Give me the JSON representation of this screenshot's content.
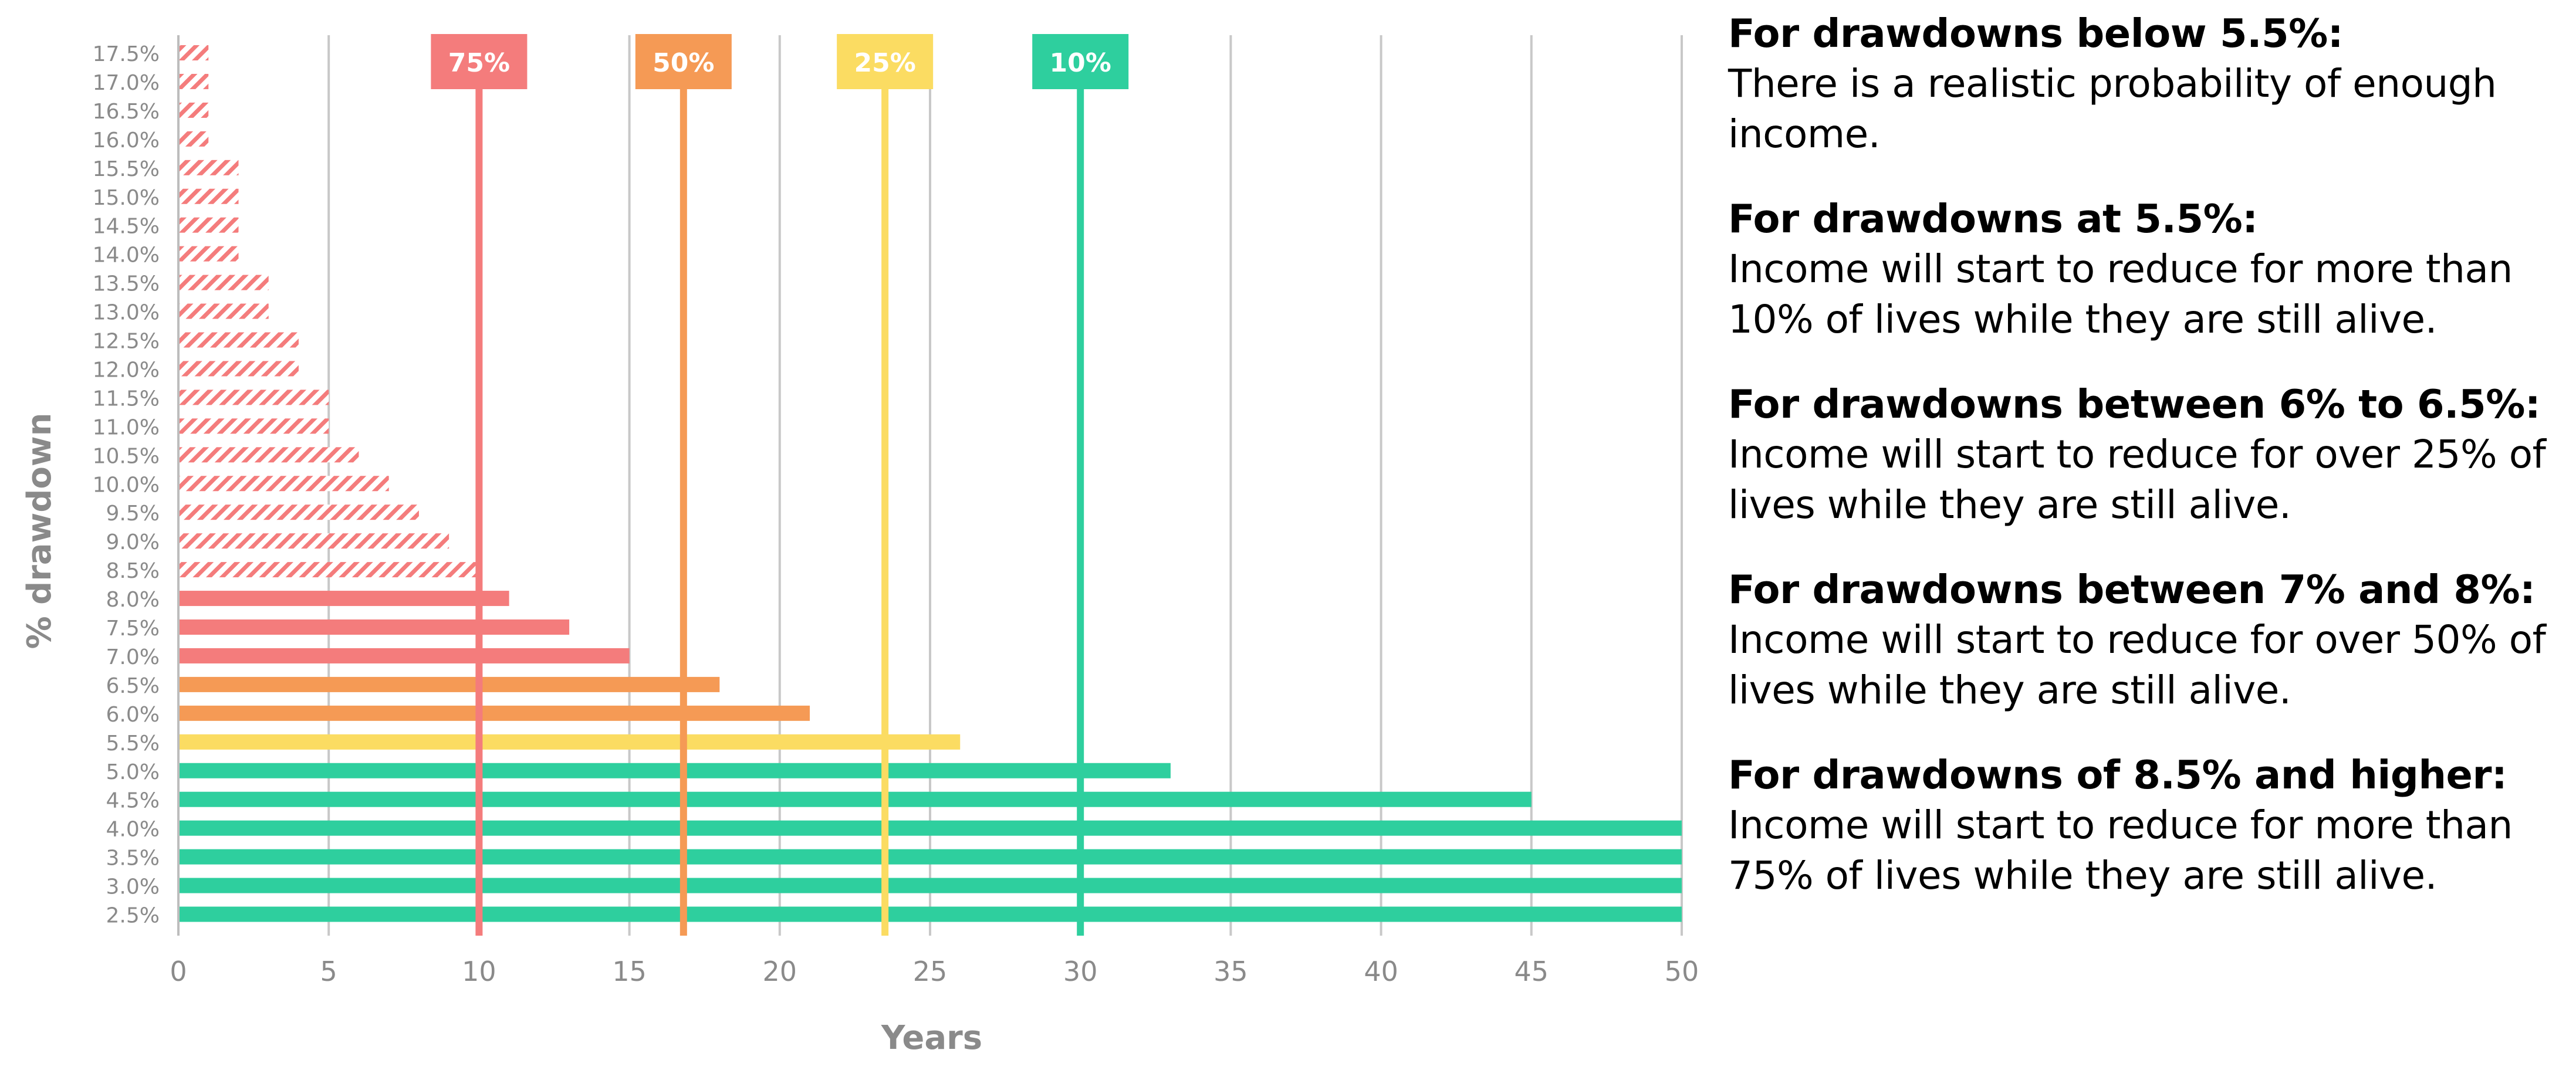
{
  "chart_data": {
    "type": "bar",
    "orientation": "horizontal",
    "ylabel": "% drawdown",
    "xlabel": "Years",
    "xlim": [
      0,
      50
    ],
    "xticks": [
      0,
      5,
      10,
      15,
      20,
      25,
      30,
      35,
      40,
      45,
      50
    ],
    "grid": "vertical",
    "categories": [
      "2.5%",
      "3.0%",
      "3.5%",
      "4.0%",
      "4.5%",
      "5.0%",
      "5.5%",
      "6.0%",
      "6.5%",
      "7.0%",
      "7.5%",
      "8.0%",
      "8.5%",
      "9.0%",
      "9.5%",
      "10.0%",
      "10.5%",
      "11.0%",
      "11.5%",
      "12.0%",
      "12.5%",
      "13.0%",
      "13.5%",
      "14.0%",
      "14.5%",
      "15.0%",
      "15.5%",
      "16.0%",
      "16.5%",
      "17.0%",
      "17.5%"
    ],
    "values": [
      50,
      50,
      50,
      50,
      45,
      33,
      26,
      21,
      18,
      15,
      13,
      11,
      10,
      9,
      8,
      7,
      6,
      5,
      5,
      4,
      4,
      3,
      3,
      2,
      2,
      2,
      2,
      1,
      1,
      1,
      1
    ],
    "bar_groups": [
      "10%",
      "10%",
      "10%",
      "10%",
      "10%",
      "10%",
      "25%",
      "50%",
      "50%",
      "75%",
      "75%",
      "75%",
      "75%",
      "75%",
      "75%",
      "75%",
      "75%",
      "75%",
      "75%",
      "75%",
      "75%",
      "75%",
      "75%",
      "75%",
      "75%",
      "75%",
      "75%",
      "75%",
      "75%",
      "75%",
      "75%"
    ],
    "hatched_from": "8.5%",
    "colors": {
      "75%": "#f47c7c",
      "50%": "#f59a55",
      "25%": "#fbdc62",
      "10%": "#2ecf9e"
    },
    "reference_lines": [
      {
        "label": "75%",
        "x": 10,
        "color": "#f47c7c"
      },
      {
        "label": "50%",
        "x": 16.8,
        "color": "#f59a55"
      },
      {
        "label": "25%",
        "x": 23.5,
        "color": "#fbdc62"
      },
      {
        "label": "10%",
        "x": 30,
        "color": "#2ecf9e"
      }
    ]
  },
  "notes": [
    {
      "heading": "For drawdowns below 5.5%:",
      "body": "There is a realistic probability of enough income."
    },
    {
      "heading": "For drawdowns at 5.5%:",
      "body": "Income will start to reduce for more than 10% of lives while they are still alive."
    },
    {
      "heading": "For drawdowns between 6% to 6.5%:",
      "body": "Income will start to reduce for over 25% of lives while they are still alive."
    },
    {
      "heading": "For drawdowns between 7% and 8%:",
      "body": "Income will start to reduce for over 50% of lives while they are still alive."
    },
    {
      "heading": "For drawdowns of 8.5% and higher:",
      "body": "Income will start to reduce for more than 75% of lives while they are still alive."
    }
  ]
}
